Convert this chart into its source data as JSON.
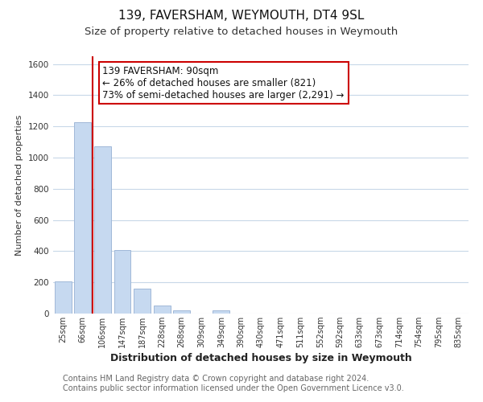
{
  "title": "139, FAVERSHAM, WEYMOUTH, DT4 9SL",
  "subtitle": "Size of property relative to detached houses in Weymouth",
  "xlabel": "Distribution of detached houses by size in Weymouth",
  "ylabel": "Number of detached properties",
  "categories": [
    "25sqm",
    "66sqm",
    "106sqm",
    "147sqm",
    "187sqm",
    "228sqm",
    "268sqm",
    "309sqm",
    "349sqm",
    "390sqm",
    "430sqm",
    "471sqm",
    "511sqm",
    "552sqm",
    "592sqm",
    "633sqm",
    "673sqm",
    "714sqm",
    "754sqm",
    "795sqm",
    "835sqm"
  ],
  "bar_heights": [
    205,
    1225,
    1075,
    405,
    160,
    52,
    20,
    0,
    20,
    0,
    0,
    0,
    0,
    0,
    0,
    0,
    0,
    0,
    0,
    0,
    0
  ],
  "bar_color": "#c6d9f0",
  "bar_edge_color": "#a0b8d8",
  "property_line_color": "#cc0000",
  "annotation_text": "139 FAVERSHAM: 90sqm\n← 26% of detached houses are smaller (821)\n73% of semi-detached houses are larger (2,291) →",
  "annotation_box_color": "#ffffff",
  "annotation_box_edge": "#cc0000",
  "ylim": [
    0,
    1650
  ],
  "yticks": [
    0,
    200,
    400,
    600,
    800,
    1000,
    1200,
    1400,
    1600
  ],
  "bg_color": "#ffffff",
  "grid_color": "#c8d8e8",
  "footer_line1": "Contains HM Land Registry data © Crown copyright and database right 2024.",
  "footer_line2": "Contains public sector information licensed under the Open Government Licence v3.0.",
  "title_fontsize": 11,
  "subtitle_fontsize": 9.5,
  "annotation_fontsize": 8.5,
  "footer_fontsize": 7,
  "xlabel_fontsize": 9,
  "ylabel_fontsize": 8
}
